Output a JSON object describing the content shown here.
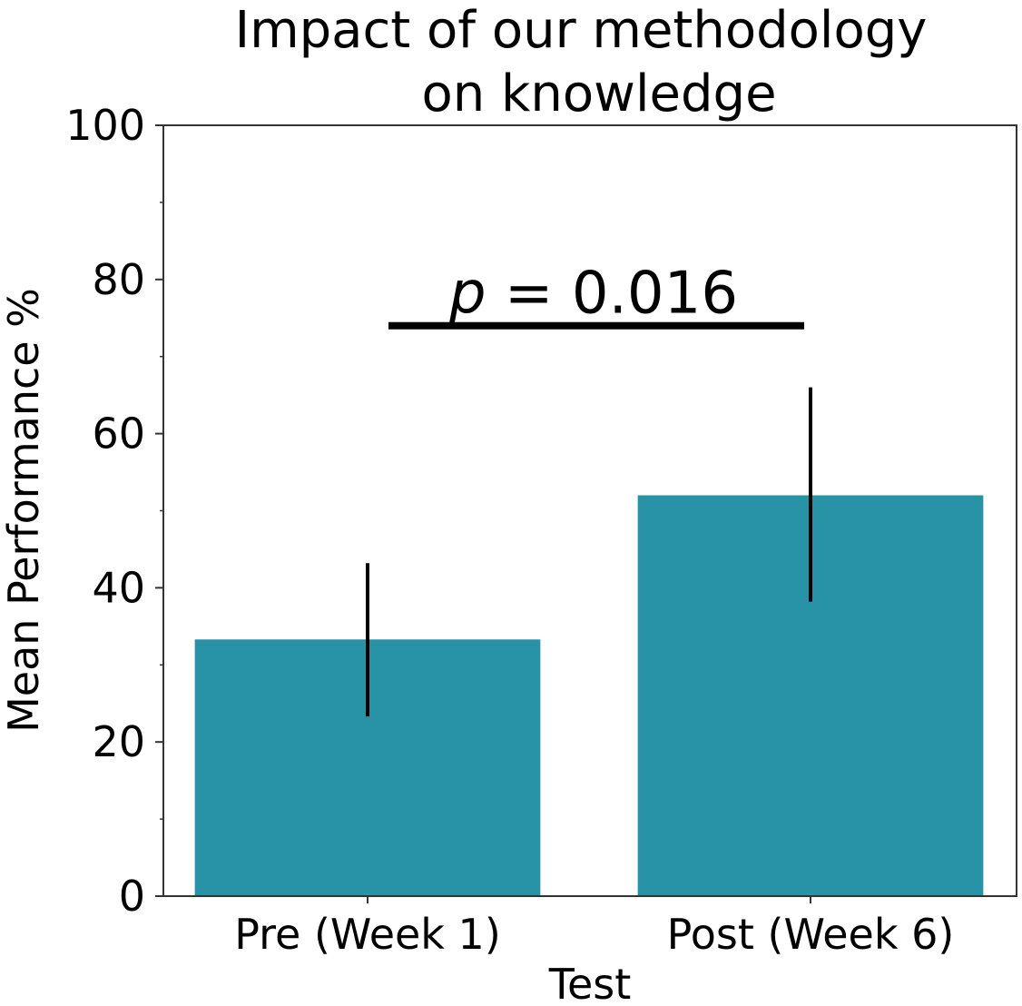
{
  "chart_data": {
    "type": "bar",
    "title": "Impact of our methodology on knowledge",
    "title_lines": [
      "Impact of our methodology",
      "on knowledge"
    ],
    "xlabel": "Test",
    "ylabel": "Mean Performance %",
    "categories": [
      "Pre (Week 1)",
      "Post (Week 6)"
    ],
    "values": [
      33.3,
      52.0
    ],
    "error_low": [
      23.3,
      38.2
    ],
    "error_high": [
      43.2,
      66.0
    ],
    "ylim": [
      0,
      100
    ],
    "yticks": [
      0,
      20,
      40,
      60,
      80,
      100
    ],
    "grid": false,
    "bar_color": "#2892a6",
    "annotation": {
      "p_symbol": "p",
      "text": " = 0.016",
      "bracket_y": 74,
      "text_y": 79
    }
  }
}
